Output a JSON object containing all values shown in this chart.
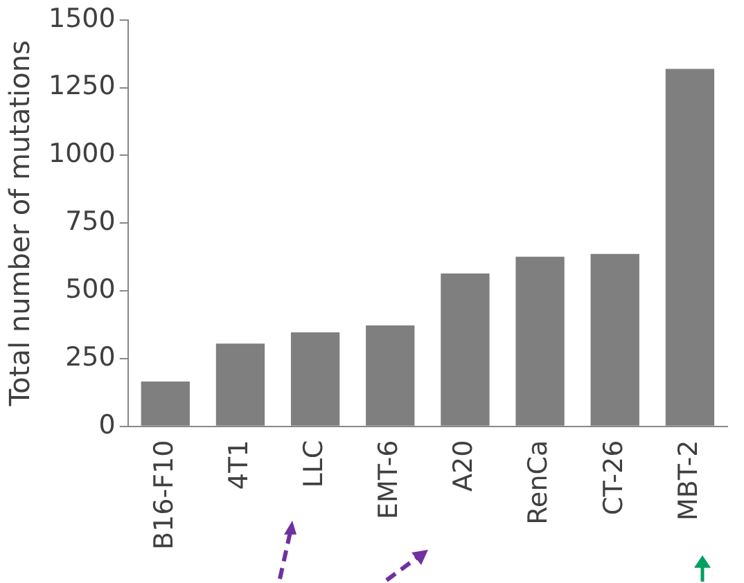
{
  "chart_data": {
    "type": "bar",
    "ylabel": "Total number of mutations",
    "categories": [
      "B16-F10",
      "4T1",
      "LLC",
      "EMT-6",
      "A20",
      "RenCa",
      "CT-26",
      "MBT-2"
    ],
    "values": [
      165,
      305,
      347,
      372,
      564,
      626,
      636,
      1319
    ],
    "color": "#7f7f7f",
    "ylim": [
      0,
      1500
    ],
    "yticks": [
      0,
      250,
      500,
      750,
      1000,
      1250,
      1500
    ],
    "grid": false
  }
}
